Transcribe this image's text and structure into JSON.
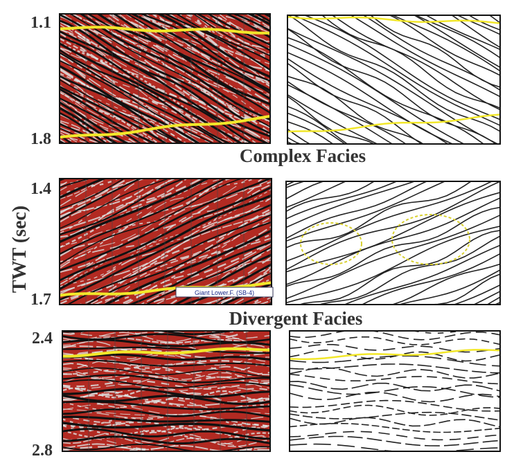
{
  "axis_label": "TWT (sec)",
  "rows": [
    {
      "top_label": "1.1",
      "bottom_label": "1.8",
      "caption": "Complex Facies"
    },
    {
      "top_label": "1.4",
      "bottom_label": "1.7",
      "caption": "Divergent Facies"
    },
    {
      "top_label": "2.4",
      "bottom_label": "2.8"
    }
  ],
  "annotation": "Giant Lower.F. (SB-4)"
}
